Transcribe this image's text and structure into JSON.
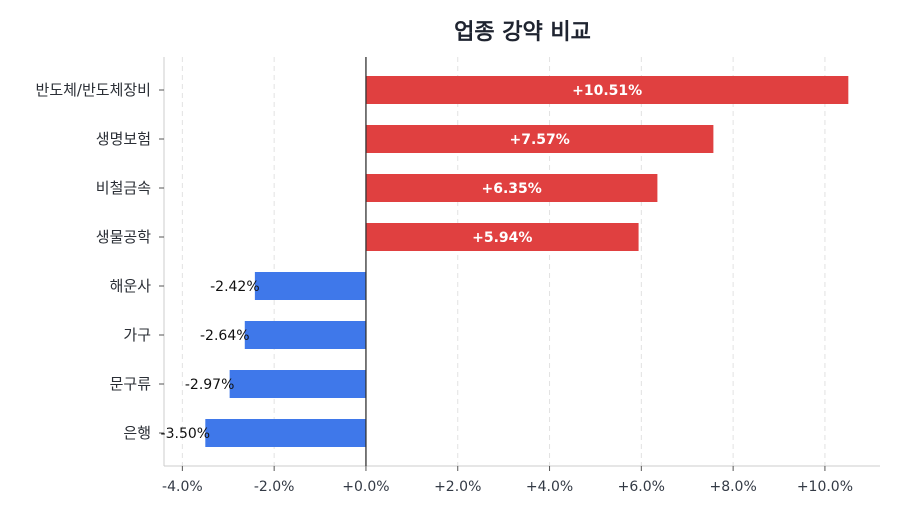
{
  "chart_data": {
    "type": "bar",
    "orientation": "horizontal",
    "title": "업종 강약 비교",
    "categories": [
      "반도체/반도체장비",
      "생명보험",
      "비철금속",
      "생물공학",
      "해운사",
      "가구",
      "문구류",
      "은행"
    ],
    "values": [
      10.51,
      7.57,
      6.35,
      5.94,
      -2.42,
      -2.64,
      -2.97,
      -3.5
    ],
    "value_labels": [
      "+10.51%",
      "+7.57%",
      "+6.35%",
      "+5.94%",
      "-2.42%",
      "-2.64%",
      "-2.97%",
      "-3.50%"
    ],
    "x_ticks": [
      -4,
      -2,
      0,
      2,
      4,
      6,
      8,
      10
    ],
    "x_tick_labels": [
      "-4.0%",
      "-2.0%",
      "+0.0%",
      "+2.0%",
      "+4.0%",
      "+6.0%",
      "+8.0%",
      "+10.0%"
    ],
    "xlim": [
      -4.4,
      11.2
    ],
    "grid": "vertical dashed",
    "colors": {
      "positive": "#e04040",
      "negative": "#3f78ea",
      "zero_line": "#333333",
      "axis": "#cccccc"
    }
  }
}
